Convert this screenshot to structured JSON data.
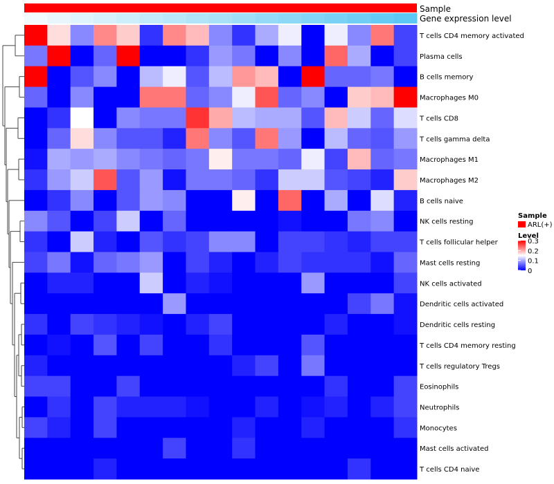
{
  "chart_data": {
    "type": "heatmap",
    "title": "",
    "annotations": [
      {
        "name": "Sample",
        "label": "Sample"
      },
      {
        "name": "Gene expression level",
        "label": "Gene expression level",
        "values": [
          0.0,
          0.04,
          0.08,
          0.12,
          0.16,
          0.2,
          0.24,
          0.28,
          0.32,
          0.36,
          0.4,
          0.44,
          0.48,
          0.52,
          0.56,
          0.6,
          0.64
        ]
      }
    ],
    "rows": [
      "T cells CD4 memory activated",
      "Plasma cells",
      "B cells memory",
      "Macrophages M0",
      "T cells CD8",
      "T cells gamma delta",
      "Macrophages M1",
      "Macrophages M2",
      "B cells naive",
      "NK cells resting",
      "T cells follicular helper",
      "Mast cells resting",
      "NK cells activated",
      "Dendritic cells activated",
      "Dendritic cells resting",
      "T cells CD4 memory resting",
      "T cells regulatory  Tregs",
      "Eosinophils",
      "Neutrophils",
      "Monocytes",
      "Mast cells activated",
      "T cells CD4 naive"
    ],
    "matrix": [
      [
        0.3,
        0.17,
        0.08,
        0.22,
        0.18,
        0.03,
        0.22,
        0.19,
        0.08,
        0.03,
        0.1,
        0.14,
        0.0,
        0.14,
        0.08,
        0.23,
        0.04
      ],
      [
        0.07,
        0.3,
        0.0,
        0.06,
        0.3,
        0.0,
        0.0,
        0.03,
        0.09,
        0.07,
        0.0,
        0.08,
        0.0,
        0.24,
        0.1,
        0.0,
        0.04
      ],
      [
        0.3,
        0.0,
        0.05,
        0.08,
        0.0,
        0.11,
        0.14,
        0.05,
        0.11,
        0.21,
        0.19,
        0.0,
        0.3,
        0.06,
        0.06,
        0.07,
        0.0
      ],
      [
        0.06,
        0.0,
        0.08,
        0.0,
        0.0,
        0.23,
        0.23,
        0.06,
        0.08,
        0.14,
        0.25,
        0.06,
        0.08,
        0.0,
        0.18,
        0.19,
        0.3
      ],
      [
        0.0,
        0.03,
        0.15,
        0.0,
        0.08,
        0.07,
        0.07,
        0.27,
        0.2,
        0.11,
        0.1,
        0.1,
        0.05,
        0.19,
        0.12,
        0.06,
        0.13
      ],
      [
        0.0,
        0.06,
        0.17,
        0.08,
        0.05,
        0.05,
        0.02,
        0.23,
        0.08,
        0.05,
        0.23,
        0.09,
        0.0,
        0.11,
        0.06,
        0.05,
        0.09
      ],
      [
        0.01,
        0.1,
        0.09,
        0.1,
        0.08,
        0.07,
        0.06,
        0.07,
        0.16,
        0.07,
        0.07,
        0.06,
        0.14,
        0.04,
        0.19,
        0.06,
        0.07
      ],
      [
        0.03,
        0.09,
        0.12,
        0.25,
        0.05,
        0.09,
        0.01,
        0.07,
        0.07,
        0.06,
        0.03,
        0.12,
        0.12,
        0.05,
        0.04,
        0.02,
        0.18
      ],
      [
        0.0,
        0.03,
        0.08,
        0.0,
        0.05,
        0.09,
        0.08,
        0.0,
        0.0,
        0.16,
        0.0,
        0.24,
        0.0,
        0.1,
        0.0,
        0.13,
        0.02
      ],
      [
        0.08,
        0.05,
        0.0,
        0.04,
        0.12,
        0.0,
        0.06,
        0.0,
        0.0,
        0.0,
        0.0,
        0.01,
        0.0,
        0.0,
        0.07,
        0.08,
        0.0
      ],
      [
        0.03,
        0.0,
        0.12,
        0.02,
        0.0,
        0.05,
        0.03,
        0.04,
        0.08,
        0.08,
        0.0,
        0.04,
        0.04,
        0.03,
        0.02,
        0.04,
        0.04
      ],
      [
        0.04,
        0.07,
        0.01,
        0.06,
        0.07,
        0.09,
        0.0,
        0.04,
        0.02,
        0.0,
        0.02,
        0.04,
        0.03,
        0.03,
        0.03,
        0.01,
        0.06
      ],
      [
        0.0,
        0.02,
        0.02,
        0.0,
        0.0,
        0.12,
        0.0,
        0.02,
        0.01,
        0.0,
        0.0,
        0.0,
        0.09,
        0.0,
        0.0,
        0.0,
        0.04
      ],
      [
        0.0,
        0.0,
        0.0,
        0.0,
        0.0,
        0.0,
        0.09,
        0.0,
        0.0,
        0.0,
        0.0,
        0.0,
        0.0,
        0.0,
        0.04,
        0.07,
        0.01
      ],
      [
        0.03,
        0.0,
        0.04,
        0.03,
        0.02,
        0.01,
        0.0,
        0.02,
        0.04,
        0.0,
        0.0,
        0.0,
        0.0,
        0.02,
        0.0,
        0.0,
        0.01
      ],
      [
        0.0,
        0.01,
        0.0,
        0.05,
        0.0,
        0.04,
        0.0,
        0.0,
        0.03,
        0.0,
        0.0,
        0.0,
        0.05,
        0.0,
        0.0,
        0.0,
        0.0
      ],
      [
        0.02,
        0.0,
        0.0,
        0.0,
        0.0,
        0.0,
        0.0,
        0.0,
        0.0,
        0.02,
        0.04,
        0.0,
        0.07,
        0.0,
        0.0,
        0.0,
        0.0
      ],
      [
        0.04,
        0.04,
        0.0,
        0.0,
        0.04,
        0.0,
        0.0,
        0.0,
        0.0,
        0.0,
        0.0,
        0.0,
        0.0,
        0.03,
        0.0,
        0.0,
        0.04
      ],
      [
        0.0,
        0.03,
        0.0,
        0.04,
        0.02,
        0.02,
        0.02,
        0.01,
        0.0,
        0.0,
        0.02,
        0.0,
        0.01,
        0.02,
        0.0,
        0.02,
        0.04
      ],
      [
        0.04,
        0.02,
        0.0,
        0.04,
        0.0,
        0.0,
        0.0,
        0.0,
        0.0,
        0.02,
        0.0,
        0.0,
        0.02,
        0.0,
        0.0,
        0.0,
        0.03
      ],
      [
        0.0,
        0.0,
        0.0,
        0.0,
        0.0,
        0.0,
        0.04,
        0.0,
        0.0,
        0.03,
        0.0,
        0.0,
        0.0,
        0.0,
        0.0,
        0.0,
        0.0
      ],
      [
        0.0,
        0.0,
        0.0,
        0.02,
        0.0,
        0.0,
        0.0,
        0.0,
        0.0,
        0.0,
        0.0,
        0.0,
        0.0,
        0.0,
        0.03,
        0.0,
        0.0
      ]
    ],
    "color_scale": {
      "min": 0,
      "mid": 0.15,
      "max": 0.3,
      "low_color": "#0000ff",
      "mid_color": "#ffffff",
      "high_color": "#ff0000"
    },
    "legend": {
      "sample_title": "Sample",
      "sample_entry": "ARL(+)",
      "sample_color": "#ff0000",
      "level_title": "Level",
      "level_ticks": [
        "0.3",
        "0.2",
        "0.1",
        "0"
      ],
      "level_tick_values": [
        0.3,
        0.2,
        0.1,
        0
      ]
    },
    "expression_color": {
      "low": "#f2fafd",
      "high": "#5dc8f3"
    },
    "dendrogram": "row clustering tree",
    "legend_position": "right"
  }
}
